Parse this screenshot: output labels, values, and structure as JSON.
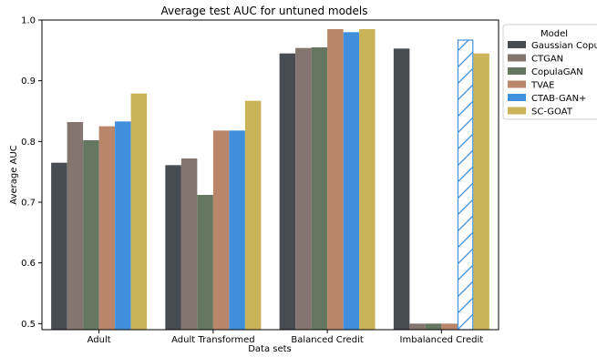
{
  "chart_data": {
    "type": "bar",
    "title": "Average test AUC for untuned models",
    "xlabel": "Data sets",
    "ylabel": "Average AUC",
    "ylim": [
      0.49,
      1.0
    ],
    "yticks": [
      "0.5",
      "0.6",
      "0.7",
      "0.8",
      "0.9",
      "1.0"
    ],
    "categories": [
      "Adult",
      "Adult Transformed",
      "Balanced Credit",
      "Imbalanced Credit"
    ],
    "legend": {
      "title": "Model",
      "placement": "right, outside plot (clipped)"
    },
    "series": [
      {
        "name": "Gaussian Copula",
        "legend_label": "Gaussian Copul",
        "color": "#474c52",
        "values": [
          0.765,
          0.761,
          0.945,
          0.953
        ]
      },
      {
        "name": "CTGAN",
        "legend_label": "CTGAN",
        "color": "#857570",
        "values": [
          0.832,
          0.772,
          0.954,
          0.5
        ]
      },
      {
        "name": "CopulaGAN",
        "legend_label": "CopulaGAN",
        "color": "#667761",
        "values": [
          0.802,
          0.712,
          0.955,
          0.5
        ]
      },
      {
        "name": "TVAE",
        "legend_label": "TVAE",
        "color": "#b9866b",
        "values": [
          0.825,
          0.818,
          0.985,
          0.5
        ]
      },
      {
        "name": "CTAB-GAN+",
        "legend_label": "CTAB-GAN+",
        "color": "#3f8fdc",
        "values": [
          0.833,
          0.818,
          0.98,
          0.967
        ],
        "hatched": [
          false,
          false,
          false,
          true
        ]
      },
      {
        "name": "SC-GOAT",
        "legend_label": "SC-GOAT",
        "color": "#c9b45a",
        "values": [
          0.879,
          0.867,
          0.985,
          0.945
        ]
      }
    ]
  }
}
